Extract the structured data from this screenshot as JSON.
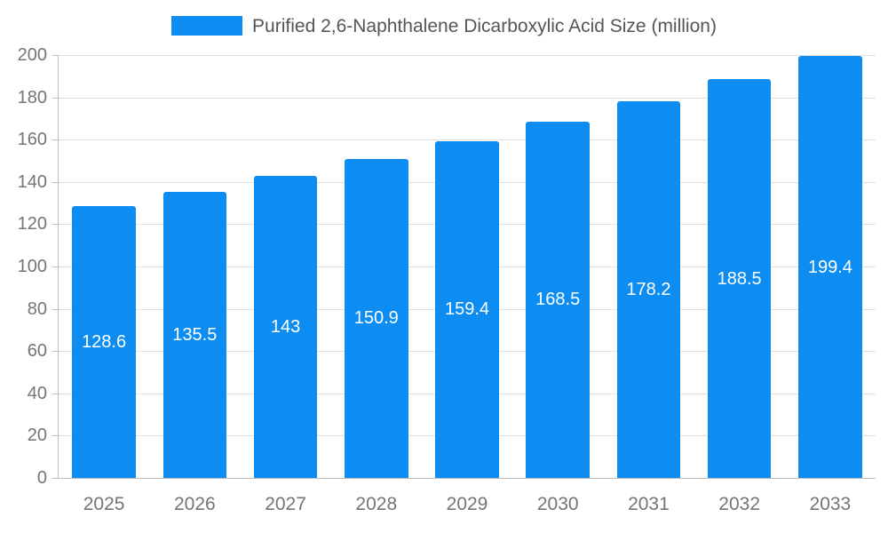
{
  "chart_data": {
    "type": "bar",
    "title": "Purified 2,6-Naphthalene Dicarboxylic Acid Size (million)",
    "categories": [
      "2025",
      "2026",
      "2027",
      "2028",
      "2029",
      "2030",
      "2031",
      "2032",
      "2033"
    ],
    "values": [
      128.6,
      135.5,
      143,
      150.9,
      159.4,
      168.5,
      178.2,
      188.5,
      199.4
    ],
    "value_labels": [
      "128.6",
      "135.5",
      "143",
      "150.9",
      "159.4",
      "168.5",
      "178.2",
      "188.5",
      "199.4"
    ],
    "xlabel": "",
    "ylabel": "",
    "ylim": [
      0,
      200
    ],
    "ytick_step": 20,
    "ytick_labels": [
      "0",
      "20",
      "40",
      "60",
      "80",
      "100",
      "120",
      "140",
      "160",
      "180",
      "200"
    ],
    "grid": true,
    "legend_position": "top",
    "colors": {
      "bar": "#0d8df2",
      "grid": "#e0e0e0",
      "axis_line": "#bdbdbd",
      "axis_text": "#757575",
      "title_text": "#555555",
      "value_label": "#ffffff"
    }
  }
}
